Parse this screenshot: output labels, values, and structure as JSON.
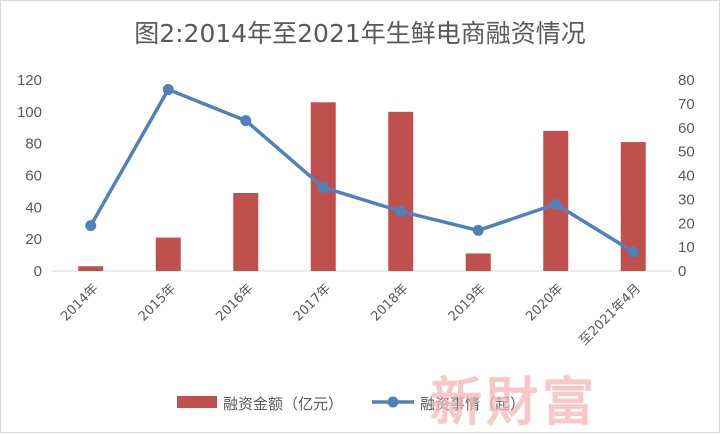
{
  "chart_data": {
    "type": "bar",
    "title": "图2:2014年至2021年生鲜电商融资情况",
    "categories": [
      "2014年",
      "2015年",
      "2016年",
      "2017年",
      "2018年",
      "2019年",
      "2020年",
      "至2021年4月"
    ],
    "series": [
      {
        "name": "融资金额（亿元）",
        "type": "bar",
        "axis": "left",
        "color": "#c0504d",
        "values": [
          3,
          21,
          49,
          106,
          100,
          11,
          88,
          81
        ]
      },
      {
        "name": "融资事情（起）",
        "type": "line",
        "axis": "right",
        "color": "#4f81bd",
        "values": [
          19,
          76,
          63,
          35,
          25,
          17,
          28,
          8
        ]
      }
    ],
    "y_left": {
      "min": 0,
      "max": 120,
      "ticks": [
        0,
        20,
        40,
        60,
        80,
        100,
        120
      ]
    },
    "y_right": {
      "min": 0,
      "max": 80,
      "ticks": [
        0,
        10,
        20,
        30,
        40,
        50,
        60,
        70,
        80
      ]
    },
    "grid": false,
    "legend": "bottom"
  },
  "watermark": "新財富"
}
